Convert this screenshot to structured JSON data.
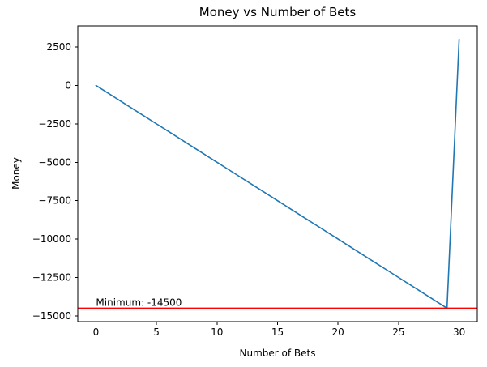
{
  "chart_data": {
    "type": "line",
    "title": "Money vs Number of Bets",
    "xlabel": "Number of Bets",
    "ylabel": "Money",
    "x": [
      0,
      1,
      2,
      3,
      4,
      5,
      6,
      7,
      8,
      9,
      10,
      11,
      12,
      13,
      14,
      15,
      16,
      17,
      18,
      19,
      20,
      21,
      22,
      23,
      24,
      25,
      26,
      27,
      28,
      29,
      30
    ],
    "y": [
      0,
      -500,
      -1000,
      -1500,
      -2000,
      -2500,
      -3000,
      -3500,
      -4000,
      -4500,
      -5000,
      -5500,
      -6000,
      -6500,
      -7000,
      -7500,
      -8000,
      -8500,
      -9000,
      -9500,
      -10000,
      -10500,
      -11000,
      -11500,
      -12000,
      -12500,
      -13000,
      -13500,
      -14000,
      -14500,
      3000
    ],
    "series_color": "#1f77b4",
    "line_width": 1.6,
    "xlim": [
      -1.5,
      31.5
    ],
    "ylim": [
      -15375,
      3875
    ],
    "xticks": [
      0,
      5,
      10,
      15,
      20,
      25,
      30
    ],
    "yticks": [
      2500,
      0,
      -2500,
      -5000,
      -7500,
      -10000,
      -12500,
      -15000
    ],
    "grid": false,
    "legend_position": "none",
    "hline": {
      "y": -14500,
      "color": "#ff0000",
      "annotation": "Minimum: -14500",
      "annotation_x": 0
    },
    "background_color": "#ffffff",
    "spine_color": "#000000",
    "text_color": "#000000"
  }
}
